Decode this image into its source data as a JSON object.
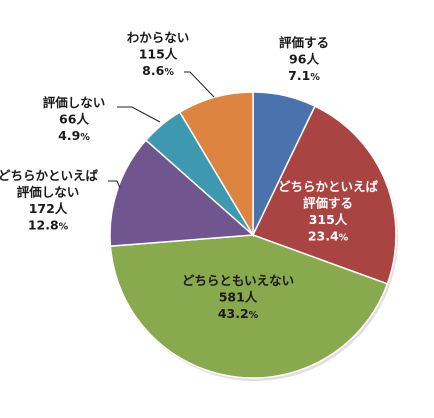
{
  "chart_data": {
    "type": "pie",
    "title": "",
    "unit": "人",
    "slices": [
      {
        "label": "評価する",
        "count": 96,
        "count_text": "96人",
        "percent": 7.1,
        "percent_num": "7.1",
        "percent_unit": "%",
        "color": "#4a72ad"
      },
      {
        "label": "どちらかといえば評価する",
        "label_lines": [
          "どちらかといえば",
          "評価する"
        ],
        "count": 315,
        "count_text": "315人",
        "percent": 23.4,
        "percent_num": "23.4",
        "percent_unit": "%",
        "color": "#a94442"
      },
      {
        "label": "どちらともいえない",
        "count": 581,
        "count_text": "581人",
        "percent": 43.2,
        "percent_num": "43.2",
        "percent_unit": "%",
        "color": "#89a94e"
      },
      {
        "label": "どちらかといえば評価しない",
        "label_lines": [
          "どちらかといえば",
          "評価しない"
        ],
        "count": 172,
        "count_text": "172人",
        "percent": 12.8,
        "percent_num": "12.8",
        "percent_unit": "%",
        "color": "#70558f"
      },
      {
        "label": "評価しない",
        "count": 66,
        "count_text": "66人",
        "percent": 4.9,
        "percent_num": "4.9",
        "percent_unit": "%",
        "color": "#3d98b0"
      },
      {
        "label": "わからない",
        "count": 115,
        "count_text": "115人",
        "percent": 8.6,
        "percent_num": "8.6",
        "percent_unit": "%",
        "color": "#dd8440"
      }
    ],
    "start_angle_deg": 0,
    "direction": "clockwise",
    "legend": "none"
  }
}
